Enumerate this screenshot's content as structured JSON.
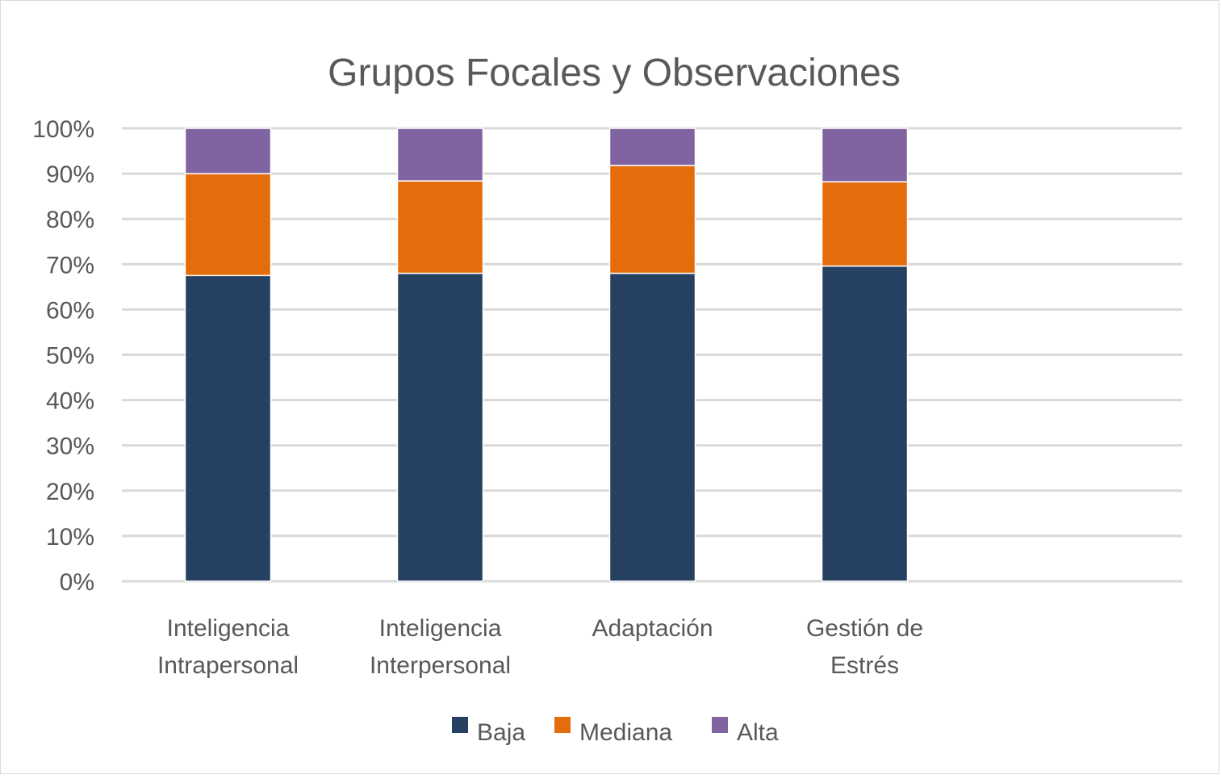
{
  "chart_data": {
    "type": "bar",
    "stacked": true,
    "percent": true,
    "title": "Grupos Focales y Observaciones",
    "xlabel": "",
    "ylabel": "",
    "ylim": [
      0,
      100
    ],
    "y_ticks": [
      "0%",
      "10%",
      "20%",
      "30%",
      "40%",
      "50%",
      "60%",
      "70%",
      "80%",
      "90%",
      "100%"
    ],
    "categories": [
      [
        "Inteligencia",
        "Intrapersonal"
      ],
      [
        "Inteligencia",
        "Interpersonal"
      ],
      [
        "Adaptación"
      ],
      [
        "Gestión de",
        "Estrés"
      ]
    ],
    "series": [
      {
        "name": "Baja",
        "color": "#264061",
        "values": [
          67.5,
          68,
          68,
          69.6
        ]
      },
      {
        "name": "Mediana",
        "color": "#e46c0a",
        "values": [
          22.5,
          20.4,
          23.8,
          18.6
        ]
      },
      {
        "name": "Alta",
        "color": "#8064a2",
        "values": [
          10,
          11.6,
          8.2,
          11.8
        ]
      }
    ],
    "grid": true,
    "legend": "bottom"
  }
}
